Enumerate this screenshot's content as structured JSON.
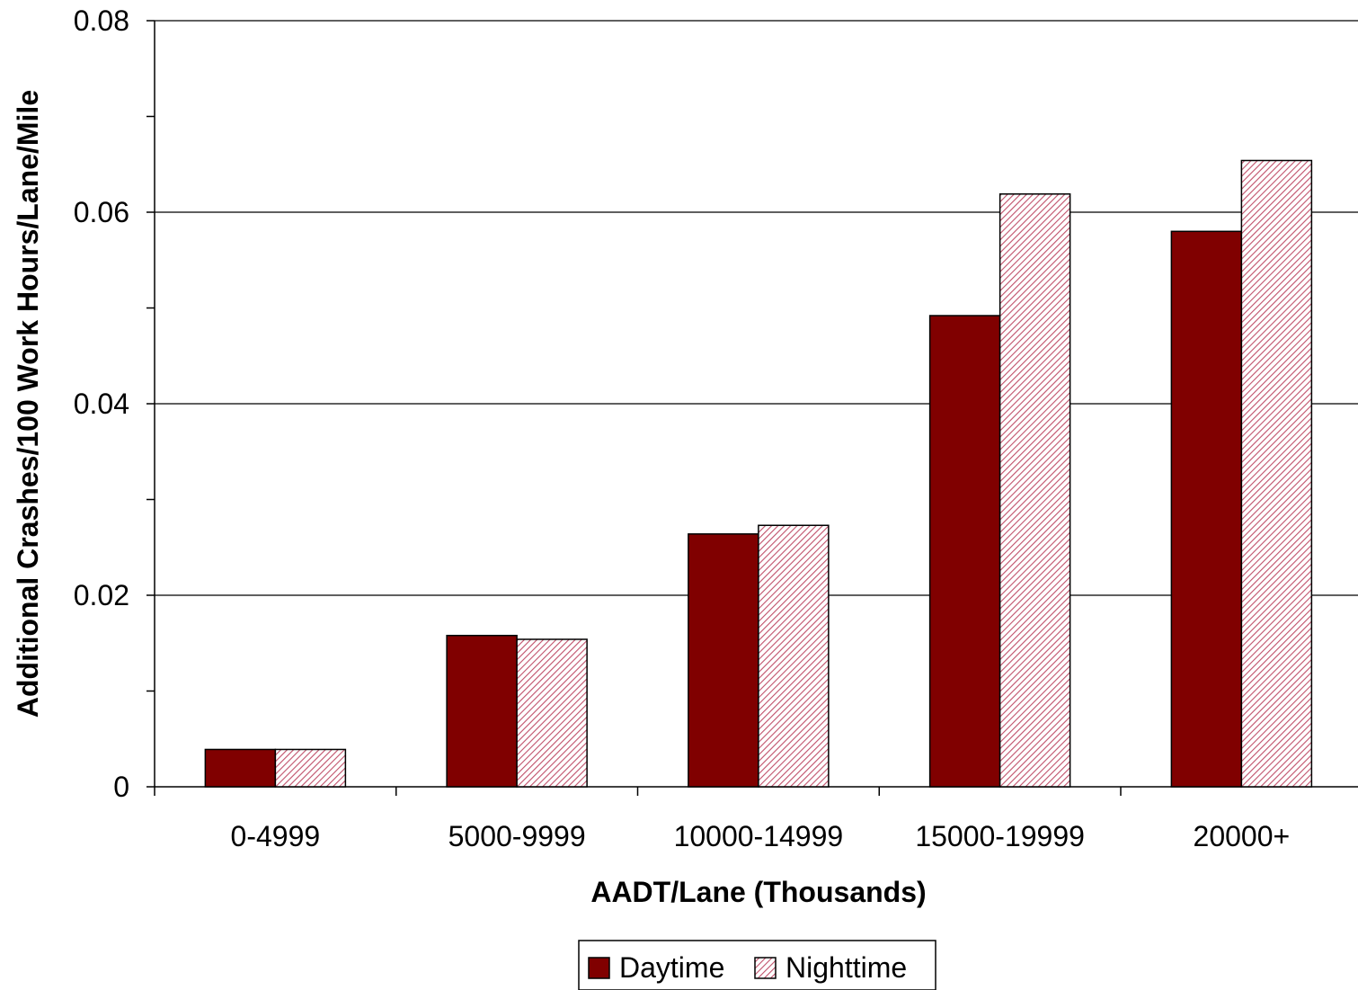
{
  "chart_data": {
    "type": "bar",
    "title": "",
    "xlabel": "AADT/Lane (Thousands)",
    "ylabel": "Additional Crashes/100 Work Hours/Lane/Mile",
    "categories": [
      "0-4999",
      "5000-9999",
      "10000-14999",
      "15000-19999",
      "20000+"
    ],
    "series": [
      {
        "name": "Daytime",
        "values": [
          0.0039,
          0.0158,
          0.0264,
          0.0492,
          0.058
        ],
        "color": "#800000",
        "pattern": "solid"
      },
      {
        "name": "Nighttime",
        "values": [
          0.0039,
          0.0154,
          0.0273,
          0.0619,
          0.0654
        ],
        "color": "#c0506a",
        "pattern": "diagonal-hatch"
      }
    ],
    "ylim": [
      0,
      0.08
    ],
    "y_ticks": [
      "0",
      "0.02",
      "0.04",
      "0.06",
      "0.08"
    ],
    "y_tick_values": [
      0,
      0.02,
      0.04,
      0.06,
      0.08
    ],
    "grid": true,
    "legend_position": "bottom-center"
  }
}
